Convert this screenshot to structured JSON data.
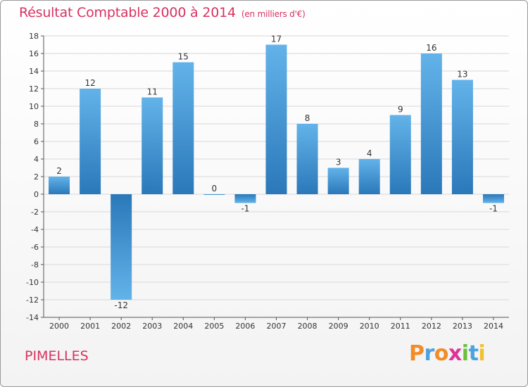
{
  "title": "Résultat Comptable 2000 à 2014",
  "subtitle": "(en milliers d'€)",
  "place": "PIMELLES",
  "logo": {
    "letters": [
      "P",
      "r",
      "o",
      "x",
      "i",
      "t",
      "i"
    ],
    "colors": [
      "#f28c28",
      "#4aa3df",
      "#f28c28",
      "#e0339a",
      "#6cbf3c",
      "#4aa3df",
      "#f2c12e"
    ]
  },
  "colors": {
    "title": "#d8325f",
    "bar_light": "#63b3ea",
    "bar_dark": "#2a78b9",
    "grid": "#d8d8d8",
    "axis_text": "#333333"
  },
  "chart_data": {
    "type": "bar",
    "categories": [
      "2000",
      "2001",
      "2002",
      "2003",
      "2004",
      "2005",
      "2006",
      "2007",
      "2008",
      "2009",
      "2010",
      "2011",
      "2012",
      "2013",
      "2014"
    ],
    "values": [
      2,
      12,
      -12,
      11,
      15,
      0,
      -1,
      17,
      8,
      3,
      4,
      9,
      16,
      13,
      -1
    ],
    "data_labels": [
      "2",
      "12",
      "-12",
      "11",
      "15",
      "0",
      "-1",
      "17",
      "8",
      "3",
      "4",
      "9",
      "16",
      "13",
      "-1"
    ],
    "yticks": [
      18,
      16,
      14,
      12,
      10,
      8,
      6,
      4,
      2,
      0,
      -2,
      -4,
      -6,
      -8,
      -10,
      -12,
      -14
    ],
    "ytick_labels": [
      "18",
      "16",
      "14",
      "12",
      "10",
      "8",
      "6",
      "4",
      "2",
      "0",
      "-2",
      "-4",
      "-6",
      "-8",
      "-10",
      "-12",
      "-14"
    ],
    "ylim": [
      -14,
      18
    ],
    "grid": true,
    "legend": "none"
  }
}
